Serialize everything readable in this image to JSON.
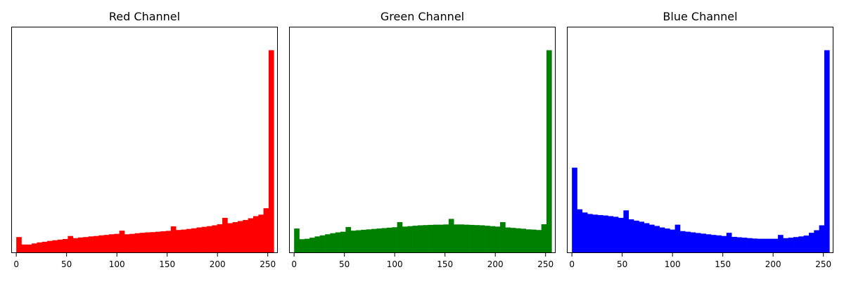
{
  "chart_data": [
    {
      "type": "bar",
      "title": "Red Channel",
      "xlabel": "",
      "ylabel": "",
      "xlim": [
        -5,
        260
      ],
      "ylim": [
        0,
        1.06
      ],
      "x_ticks": [
        "0",
        "50",
        "100",
        "150",
        "200",
        "250"
      ],
      "y_ticks": [],
      "bin_width": 5.12,
      "color": "#ff0000",
      "values": [
        0.075,
        0.04,
        0.04,
        0.045,
        0.05,
        0.053,
        0.057,
        0.06,
        0.063,
        0.066,
        0.08,
        0.07,
        0.073,
        0.075,
        0.078,
        0.08,
        0.083,
        0.085,
        0.088,
        0.09,
        0.105,
        0.088,
        0.09,
        0.093,
        0.095,
        0.097,
        0.098,
        0.1,
        0.102,
        0.104,
        0.125,
        0.108,
        0.11,
        0.113,
        0.116,
        0.12,
        0.123,
        0.126,
        0.13,
        0.135,
        0.165,
        0.14,
        0.145,
        0.15,
        0.155,
        0.163,
        0.173,
        0.18,
        0.21,
        0.95
      ]
    },
    {
      "type": "bar",
      "title": "Green Channel",
      "xlabel": "",
      "ylabel": "",
      "xlim": [
        -5,
        260
      ],
      "ylim": [
        0,
        1.06
      ],
      "x_ticks": [
        "0",
        "50",
        "100",
        "150",
        "200",
        "250"
      ],
      "y_ticks": [],
      "bin_width": 5.12,
      "color": "#008000",
      "values": [
        0.115,
        0.065,
        0.067,
        0.072,
        0.078,
        0.083,
        0.088,
        0.093,
        0.097,
        0.1,
        0.122,
        0.105,
        0.107,
        0.109,
        0.111,
        0.113,
        0.115,
        0.117,
        0.119,
        0.121,
        0.145,
        0.124,
        0.126,
        0.128,
        0.13,
        0.131,
        0.132,
        0.133,
        0.133,
        0.134,
        0.16,
        0.134,
        0.134,
        0.133,
        0.132,
        0.131,
        0.13,
        0.128,
        0.126,
        0.124,
        0.145,
        0.12,
        0.118,
        0.116,
        0.114,
        0.111,
        0.11,
        0.108,
        0.135,
        0.95
      ]
    },
    {
      "type": "bar",
      "title": "Blue Channel",
      "xlabel": "",
      "ylabel": "",
      "xlim": [
        -5,
        260
      ],
      "ylim": [
        0,
        1.06
      ],
      "x_ticks": [
        "0",
        "50",
        "100",
        "150",
        "200",
        "250"
      ],
      "y_ticks": [],
      "bin_width": 5.12,
      "color": "#0000ff",
      "values": [
        0.4,
        0.205,
        0.19,
        0.183,
        0.18,
        0.178,
        0.176,
        0.173,
        0.17,
        0.165,
        0.2,
        0.158,
        0.152,
        0.147,
        0.14,
        0.133,
        0.127,
        0.12,
        0.115,
        0.11,
        0.133,
        0.103,
        0.1,
        0.097,
        0.094,
        0.091,
        0.088,
        0.085,
        0.083,
        0.08,
        0.095,
        0.076,
        0.074,
        0.072,
        0.07,
        0.068,
        0.067,
        0.067,
        0.067,
        0.067,
        0.085,
        0.07,
        0.072,
        0.075,
        0.078,
        0.082,
        0.095,
        0.107,
        0.13,
        0.95
      ]
    }
  ]
}
